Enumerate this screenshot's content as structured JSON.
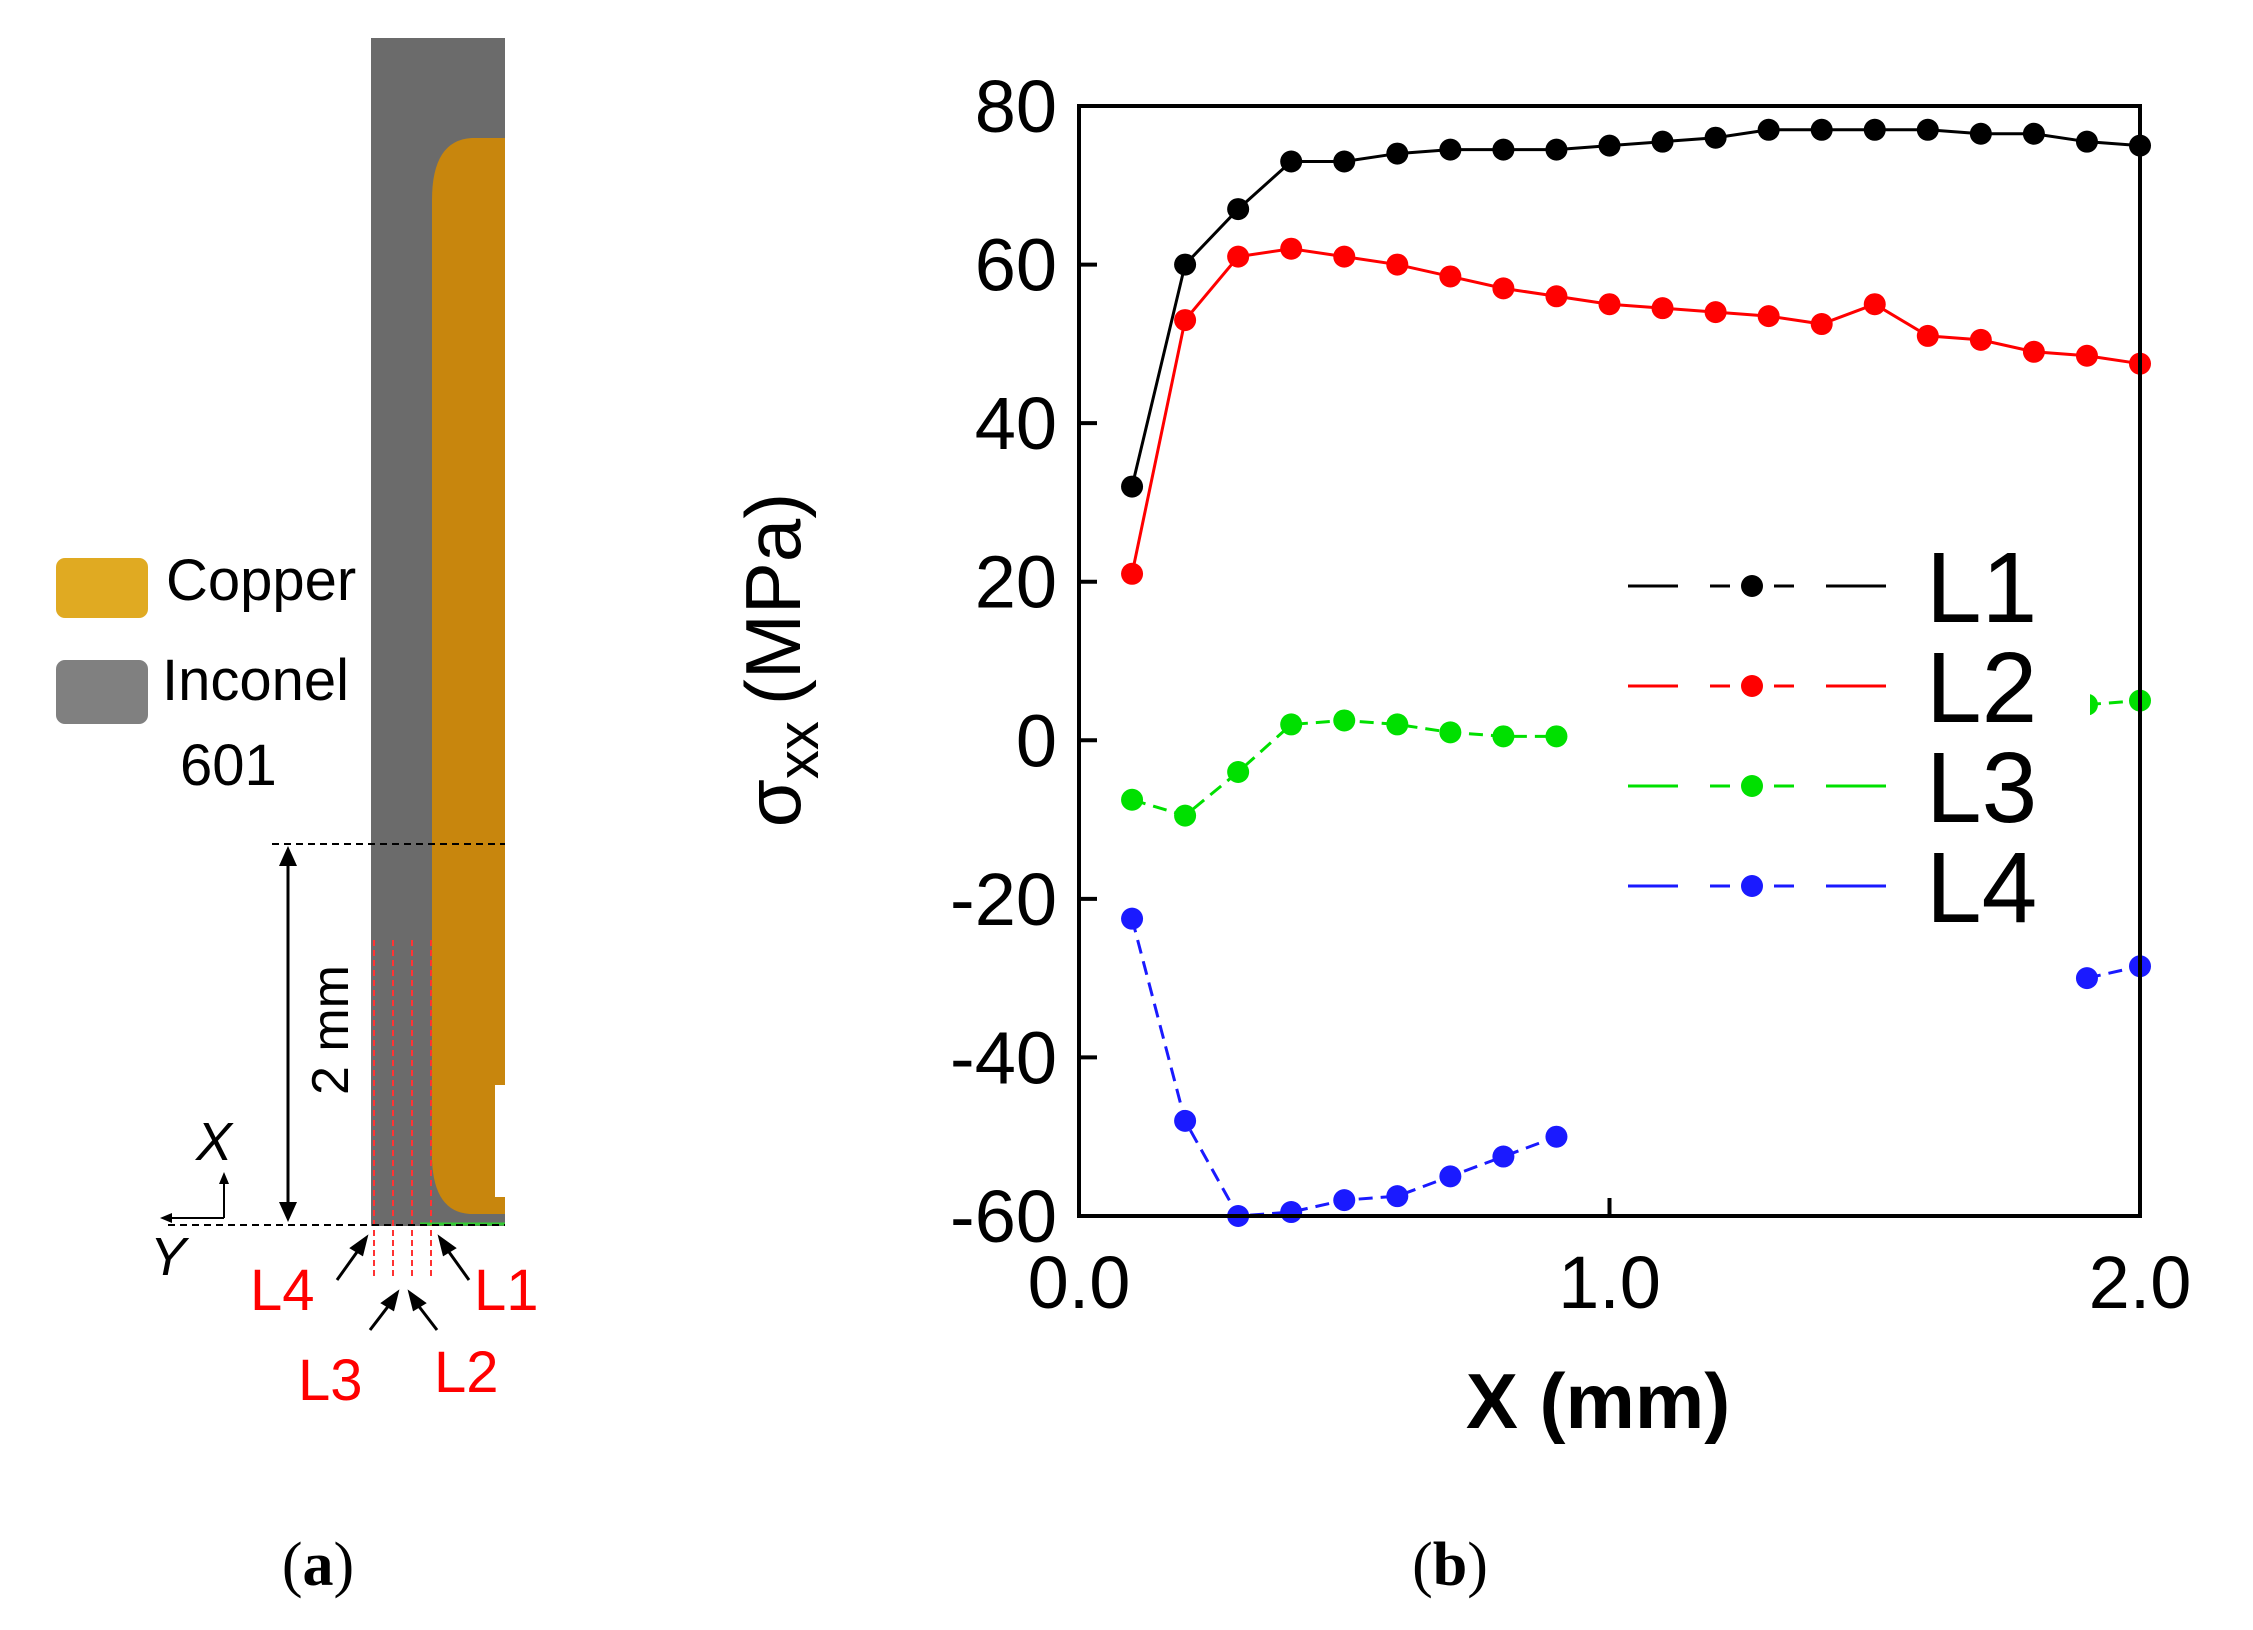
{
  "panel_a": {
    "legend": [
      {
        "label": "Copper",
        "color": "#d4a017"
      },
      {
        "label": "Inconel",
        "label2": "601",
        "color": "#808080"
      }
    ],
    "dimension_label": "2 mm",
    "axis_x": "X",
    "axis_y": "Y",
    "line_labels": [
      "L4",
      "L3",
      "L2",
      "L1"
    ],
    "caption": "a",
    "colors": {
      "inconel": "#6b6b6b",
      "copper": "#c8860d",
      "lines": "#ff3333"
    }
  },
  "panel_b": {
    "caption": "b"
  },
  "chart_data": {
    "type": "line",
    "title": "",
    "xlabel": "X (mm)",
    "ylabel": "σxx (MPa)",
    "ylabel_main": "σ",
    "ylabel_sub": "xx",
    "ylabel_unit": "(MPa)",
    "xlim": [
      0.0,
      2.0
    ],
    "ylim": [
      -60,
      80
    ],
    "x_ticks": [
      0.0,
      1.0,
      2.0
    ],
    "x_tick_labels": [
      "0.0",
      "1.0",
      "2.0"
    ],
    "y_ticks": [
      80,
      60,
      40,
      20,
      0,
      -20,
      -40,
      -60
    ],
    "y_tick_labels": [
      "80",
      "60",
      "40",
      "20",
      "0",
      "-20",
      "-40",
      "-60"
    ],
    "grid": false,
    "legend_position": "right",
    "series": [
      {
        "name": "L1",
        "color": "#000000",
        "x": [
          0.1,
          0.2,
          0.3,
          0.4,
          0.5,
          0.6,
          0.7,
          0.8,
          0.9,
          1.0,
          1.1,
          1.2,
          1.3,
          1.4,
          1.5,
          1.6,
          1.7,
          1.8,
          1.9,
          2.0
        ],
        "y": [
          32,
          60,
          67,
          73,
          73,
          74,
          74.5,
          74.5,
          74.5,
          75,
          75.5,
          76,
          77,
          77,
          77,
          77,
          76.5,
          76.5,
          75.5,
          75
        ]
      },
      {
        "name": "L2",
        "color": "#ff0000",
        "x": [
          0.1,
          0.2,
          0.3,
          0.4,
          0.5,
          0.6,
          0.7,
          0.8,
          0.9,
          1.0,
          1.1,
          1.2,
          1.3,
          1.4,
          1.5,
          1.6,
          1.7,
          1.8,
          1.9,
          2.0
        ],
        "y": [
          21,
          53,
          61,
          62,
          61,
          60,
          58.5,
          57,
          56,
          55,
          54.5,
          54,
          53.5,
          52.5,
          55,
          51,
          50.5,
          49,
          48.5,
          47.5
        ]
      },
      {
        "name": "L3",
        "color": "#00e000",
        "x": [
          0.1,
          0.2,
          0.3,
          0.4,
          0.5,
          0.6,
          0.7,
          0.8,
          0.9,
          1.9,
          2.0
        ],
        "y": [
          -7.5,
          -9.5,
          -4,
          2,
          2.5,
          2,
          1,
          0.5,
          0.5,
          4.5,
          5
        ]
      },
      {
        "name": "L4",
        "color": "#1a1aff",
        "x": [
          0.1,
          0.2,
          0.3,
          0.4,
          0.5,
          0.6,
          0.7,
          0.8,
          0.9,
          1.9,
          2.0
        ],
        "y": [
          -22.5,
          -48,
          -60,
          -59.5,
          -58,
          -57.5,
          -55,
          -52.5,
          -50,
          -30,
          -28.5
        ]
      }
    ]
  }
}
